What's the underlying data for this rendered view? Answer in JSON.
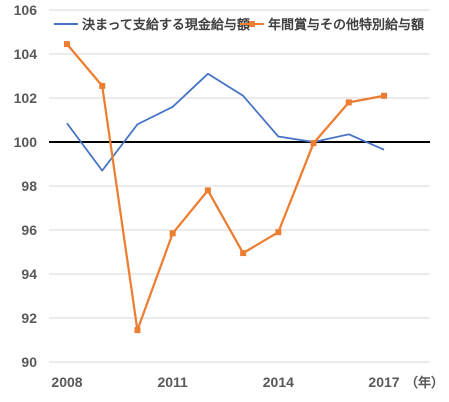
{
  "chart_data": {
    "type": "line",
    "x": [
      2008,
      2009,
      2010,
      2011,
      2012,
      2013,
      2014,
      2015,
      2016,
      2017
    ],
    "x_tick_labels": [
      "2008",
      "2011",
      "2014",
      "2017"
    ],
    "x_unit_label": "（年）",
    "ylim": [
      90,
      106
    ],
    "y_ticks": [
      90,
      92,
      94,
      96,
      98,
      100,
      102,
      104,
      106
    ],
    "reference_line": 100,
    "grid": true,
    "legend_position": "top",
    "series": [
      {
        "name": "決まって支給する現金給与額",
        "color": "#4472C4",
        "marker": "none",
        "values": [
          100.85,
          98.7,
          100.8,
          101.6,
          103.1,
          102.1,
          100.25,
          100.0,
          100.35,
          99.65
        ]
      },
      {
        "name": "年間賞与その他特別給与額",
        "color": "#ED7D31",
        "marker": "square",
        "values": [
          104.45,
          102.55,
          91.45,
          95.85,
          97.8,
          94.95,
          95.9,
          99.95,
          101.8,
          102.1
        ]
      }
    ]
  }
}
